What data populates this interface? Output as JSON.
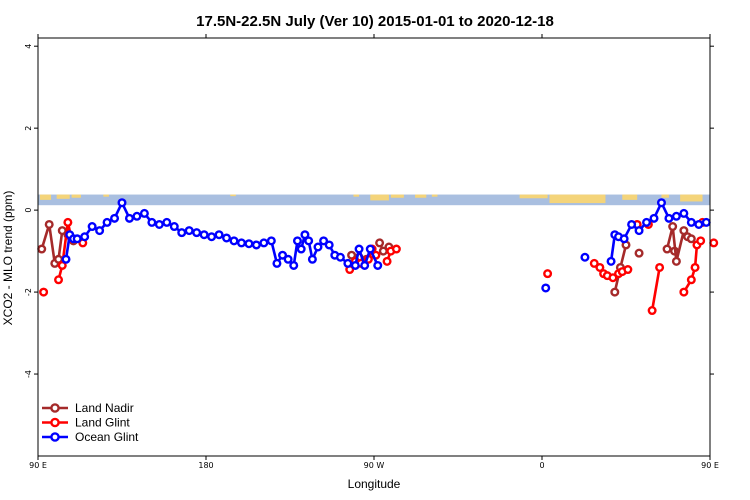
{
  "chart_data": {
    "type": "line",
    "title": "17.5N-22.5N July (Ver 10)   2015-01-01 to 2020-12-18",
    "xlabel": "Longitude",
    "ylabel": "XCO2 - MLO trend (ppm)",
    "xlim": [
      90,
      450
    ],
    "ylim": [
      -6,
      4.2
    ],
    "x_ticks": [
      {
        "value": 90,
        "label": "90 E"
      },
      {
        "value": 180,
        "label": "180"
      },
      {
        "value": 270,
        "label": "90 W"
      },
      {
        "value": 360,
        "label": "0"
      },
      {
        "value": 450,
        "label": "90 E"
      }
    ],
    "x_ticks_top": [
      90,
      180,
      270,
      360,
      450
    ],
    "y_ticks": [
      {
        "value": 4,
        "label": "4"
      },
      {
        "value": 2,
        "label": "2"
      },
      {
        "value": 0,
        "label": "0"
      },
      {
        "value": -2,
        "label": "-2"
      },
      {
        "value": -4,
        "label": "-4"
      }
    ],
    "grid": false,
    "legend_position": "bottom-left",
    "land_strip": {
      "y_range": [
        0.12,
        0.38
      ],
      "ocean_color": "#a9bfe0",
      "land_color": "#f4d47a",
      "land_segments": [
        [
          91,
          97,
          0.5
        ],
        [
          100,
          107,
          0.4
        ],
        [
          108,
          113,
          0.3
        ],
        [
          125,
          128,
          0.2
        ],
        [
          193,
          196,
          0.15
        ],
        [
          259,
          262,
          0.2
        ],
        [
          268,
          278,
          0.55
        ],
        [
          279,
          286,
          0.3
        ],
        [
          292,
          298,
          0.3
        ],
        [
          301,
          304,
          0.2
        ],
        [
          348,
          363,
          0.35
        ],
        [
          364,
          394,
          0.8
        ],
        [
          403,
          411,
          0.5
        ],
        [
          424,
          428,
          0.3
        ],
        [
          434,
          446,
          0.65
        ]
      ]
    },
    "series": [
      {
        "name": "Land Nadir",
        "color": "#a52a2a",
        "segments": [
          [
            [
              92,
              -0.95
            ],
            [
              96,
              -0.35
            ],
            [
              99,
              -1.3
            ],
            [
              101,
              -1.2
            ],
            [
              103,
              -0.5
            ],
            [
              106,
              -0.6
            ],
            [
              109,
              -0.75
            ]
          ],
          [
            [
              258,
              -1.1
            ],
            [
              262,
              -1.15
            ],
            [
              264,
              -1.3
            ],
            [
              266,
              -1.2
            ]
          ],
          [
            [
              273,
              -0.8
            ],
            [
              275,
              -1.0
            ],
            [
              278,
              -0.9
            ]
          ],
          [
            [
              399,
              -2.0
            ],
            [
              402,
              -1.4
            ],
            [
              405,
              -0.85
            ]
          ],
          [
            [
              431,
              -1.0
            ]
          ],
          [
            [
              412,
              -1.05
            ]
          ],
          [
            [
              427,
              -0.95
            ],
            [
              430,
              -0.4
            ],
            [
              432,
              -1.25
            ],
            [
              436,
              -0.5
            ],
            [
              438,
              -0.65
            ],
            [
              440,
              -0.7
            ]
          ]
        ]
      },
      {
        "name": "Land Glint",
        "color": "#ff0000",
        "segments": [
          [
            [
              93,
              -2.0
            ]
          ],
          [
            [
              101,
              -1.7
            ],
            [
              103,
              -1.35
            ],
            [
              106,
              -0.3
            ],
            [
              108,
              -0.7
            ]
          ],
          [
            [
              114,
              -0.8
            ]
          ],
          [
            [
              257,
              -1.45
            ],
            [
              260,
              -1.25
            ],
            [
              263,
              -1.3
            ]
          ],
          [
            [
              267,
              -1.2
            ],
            [
              269,
              -0.95
            ],
            [
              271,
              -1.1
            ]
          ],
          [
            [
              277,
              -1.25
            ],
            [
              279,
              -1.0
            ],
            [
              282,
              -0.95
            ]
          ],
          [
            [
              363,
              -1.55
            ]
          ],
          [
            [
              388,
              -1.3
            ],
            [
              391,
              -1.4
            ],
            [
              393,
              -1.55
            ],
            [
              395,
              -1.6
            ],
            [
              398,
              -1.65
            ]
          ],
          [
            [
              401,
              -1.55
            ],
            [
              403,
              -1.5
            ],
            [
              406,
              -1.45
            ]
          ],
          [
            [
              419,
              -2.45
            ],
            [
              423,
              -1.4
            ]
          ],
          [
            [
              417,
              -0.35
            ]
          ],
          [
            [
              411,
              -0.35
            ]
          ],
          [
            [
              436,
              -2.0
            ],
            [
              440,
              -1.7
            ],
            [
              442,
              -1.4
            ],
            [
              443,
              -0.85
            ],
            [
              445,
              -0.75
            ]
          ],
          [
            [
              446,
              -0.3
            ]
          ],
          [
            [
              452,
              -0.8
            ]
          ]
        ]
      },
      {
        "name": "Ocean Glint",
        "color": "#0000ff",
        "segments": [
          [
            [
              105,
              -1.2
            ],
            [
              107,
              -0.6
            ],
            [
              109,
              -0.7
            ],
            [
              111,
              -0.7
            ],
            [
              115,
              -0.65
            ],
            [
              119,
              -0.4
            ],
            [
              123,
              -0.5
            ],
            [
              127,
              -0.3
            ],
            [
              131,
              -0.2
            ],
            [
              135,
              0.18
            ],
            [
              139,
              -0.2
            ],
            [
              143,
              -0.15
            ],
            [
              147,
              -0.08
            ],
            [
              151,
              -0.3
            ],
            [
              155,
              -0.35
            ],
            [
              159,
              -0.3
            ],
            [
              163,
              -0.4
            ],
            [
              167,
              -0.55
            ],
            [
              171,
              -0.5
            ],
            [
              175,
              -0.55
            ],
            [
              179,
              -0.6
            ],
            [
              183,
              -0.65
            ],
            [
              187,
              -0.6
            ],
            [
              191,
              -0.68
            ],
            [
              195,
              -0.75
            ],
            [
              199,
              -0.8
            ],
            [
              203,
              -0.82
            ],
            [
              207,
              -0.85
            ],
            [
              211,
              -0.8
            ],
            [
              215,
              -0.75
            ],
            [
              218,
              -1.3
            ],
            [
              221,
              -1.1
            ],
            [
              224,
              -1.2
            ],
            [
              227,
              -1.35
            ],
            [
              229,
              -0.75
            ],
            [
              231,
              -0.95
            ],
            [
              233,
              -0.6
            ],
            [
              235,
              -0.75
            ],
            [
              237,
              -1.2
            ],
            [
              240,
              -0.9
            ],
            [
              243,
              -0.75
            ],
            [
              246,
              -0.85
            ],
            [
              249,
              -1.1
            ],
            [
              252,
              -1.15
            ],
            [
              256,
              -1.3
            ],
            [
              260,
              -1.35
            ],
            [
              262,
              -0.95
            ],
            [
              265,
              -1.35
            ],
            [
              268,
              -0.95
            ],
            [
              272,
              -1.35
            ]
          ],
          [
            [
              362,
              -1.9
            ]
          ],
          [
            [
              383,
              -1.15
            ]
          ],
          [
            [
              397,
              -1.25
            ],
            [
              399,
              -0.6
            ],
            [
              401,
              -0.65
            ],
            [
              404,
              -0.7
            ],
            [
              408,
              -0.35
            ],
            [
              412,
              -0.5
            ],
            [
              416,
              -0.3
            ],
            [
              420,
              -0.2
            ],
            [
              424,
              0.18
            ],
            [
              428,
              -0.2
            ],
            [
              432,
              -0.15
            ],
            [
              436,
              -0.08
            ],
            [
              440,
              -0.3
            ],
            [
              444,
              -0.35
            ],
            [
              448,
              -0.3
            ]
          ]
        ]
      }
    ]
  }
}
